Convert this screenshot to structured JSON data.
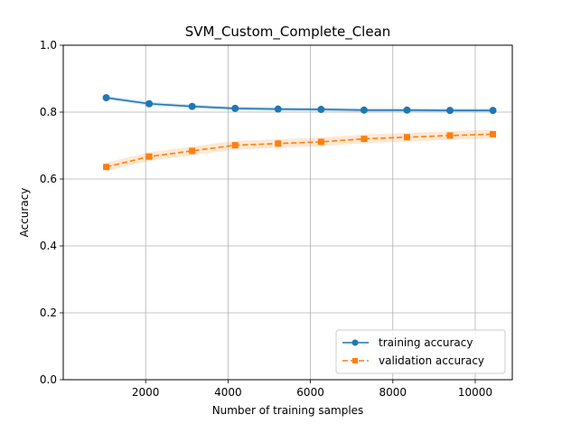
{
  "chart_data": {
    "type": "line",
    "title": "SVM_Custom_Complete_Clean",
    "xlabel": "Number of training samples",
    "ylabel": "Accuracy",
    "xlim": [
      0,
      10900
    ],
    "ylim": [
      0.0,
      1.0
    ],
    "xticks": [
      2000,
      4000,
      6000,
      8000,
      10000
    ],
    "xtick_labels": [
      "2000",
      "4000",
      "6000",
      "8000",
      "10000"
    ],
    "yticks": [
      0.0,
      0.2,
      0.4,
      0.6,
      0.8,
      1.0
    ],
    "ytick_labels": [
      "0.0",
      "0.2",
      "0.4",
      "0.6",
      "0.8",
      "1.0"
    ],
    "grid": true,
    "legend_position": "lower-right",
    "x": [
      1043,
      2086,
      3129,
      4172,
      5215,
      6258,
      7301,
      8344,
      9387,
      10430
    ],
    "series": [
      {
        "name": "training accuracy",
        "color": "#1f77b4",
        "marker": "circle",
        "linestyle": "solid",
        "values": [
          0.843,
          0.825,
          0.817,
          0.811,
          0.809,
          0.808,
          0.806,
          0.806,
          0.805,
          0.805
        ],
        "band": 0.006
      },
      {
        "name": "validation accuracy",
        "color": "#ff7f0e",
        "marker": "square",
        "linestyle": "dashed",
        "values": [
          0.636,
          0.667,
          0.684,
          0.701,
          0.706,
          0.711,
          0.72,
          0.725,
          0.73,
          0.734
        ],
        "band": 0.013
      }
    ]
  }
}
